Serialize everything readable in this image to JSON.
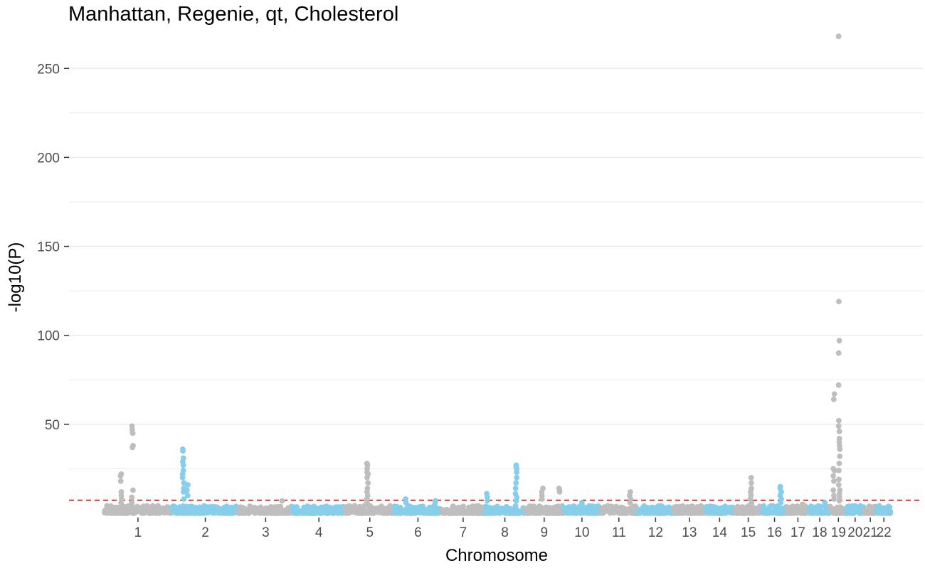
{
  "chart_data": {
    "type": "scatter",
    "title": "Manhattan, Regenie, qt, Cholesterol",
    "xlabel": "Chromosome",
    "ylabel": "-log10(P)",
    "ylim": [
      0,
      270
    ],
    "yticks": [
      50,
      100,
      150,
      200,
      250
    ],
    "grid": true,
    "legend": "none",
    "colors": {
      "odd_chromosome": "#bebebe",
      "even_chromosome": "#87ceeb",
      "threshold_line": "#e41a1c",
      "gridline": "#ebebeb"
    },
    "genome_wide_threshold": 7.3,
    "chromosomes": [
      {
        "label": "1",
        "length": 249,
        "color": "#bebebe",
        "peaks": [
          {
            "pos": 0.25,
            "values": [
              6,
              8,
              10,
              12,
              18,
              21,
              22
            ]
          },
          {
            "pos": 0.42,
            "values": [
              6,
              9,
              13,
              37,
              38,
              45,
              47,
              49
            ]
          }
        ]
      },
      {
        "label": "2",
        "length": 243,
        "color": "#87ceeb",
        "peaks": [
          {
            "pos": 0.17,
            "values": [
              8,
              12,
              14,
              17,
              20,
              22,
              24,
              27,
              29,
              31,
              35,
              36
            ]
          },
          {
            "pos": 0.23,
            "values": [
              10,
              13,
              16
            ]
          }
        ]
      },
      {
        "label": "3",
        "length": 198,
        "color": "#bebebe",
        "peaks": [
          {
            "pos": 0.8,
            "values": [
              7
            ]
          }
        ]
      },
      {
        "label": "4",
        "length": 191,
        "color": "#87ceeb",
        "peaks": []
      },
      {
        "label": "5",
        "length": 181,
        "color": "#bebebe",
        "peaks": [
          {
            "pos": 0.45,
            "values": [
              6,
              8,
              10,
              12,
              14,
              17,
              20,
              22,
              23,
              25,
              27,
              28
            ]
          }
        ]
      },
      {
        "label": "6",
        "length": 171,
        "color": "#87ceeb",
        "peaks": [
          {
            "pos": 0.23,
            "values": [
              6,
              8
            ]
          },
          {
            "pos": 0.88,
            "values": [
              6,
              7
            ]
          }
        ]
      },
      {
        "label": "7",
        "length": 159,
        "color": "#bebebe",
        "peaks": []
      },
      {
        "label": "8",
        "length": 146,
        "color": "#87ceeb",
        "peaks": [
          {
            "pos": 0.05,
            "values": [
              7,
              9,
              11
            ]
          },
          {
            "pos": 0.78,
            "values": [
              7,
              9,
              11,
              14,
              17,
              20,
              23,
              25,
              26,
              27
            ]
          }
        ]
      },
      {
        "label": "9",
        "length": 141,
        "color": "#bebebe",
        "peaks": [
          {
            "pos": 0.45,
            "values": [
              8,
              10,
              12,
              14
            ]
          },
          {
            "pos": 0.9,
            "values": [
              12,
              13,
              14
            ]
          }
        ]
      },
      {
        "label": "10",
        "length": 135,
        "color": "#87ceeb",
        "peaks": [
          {
            "pos": 0.5,
            "values": [
              6
            ]
          }
        ]
      },
      {
        "label": "11",
        "length": 135,
        "color": "#bebebe",
        "peaks": [
          {
            "pos": 0.8,
            "values": [
              6,
              8,
              10,
              12
            ]
          }
        ]
      },
      {
        "label": "12",
        "length": 133,
        "color": "#87ceeb",
        "peaks": []
      },
      {
        "label": "13",
        "length": 114,
        "color": "#bebebe",
        "peaks": []
      },
      {
        "label": "14",
        "length": 107,
        "color": "#87ceeb",
        "peaks": []
      },
      {
        "label": "15",
        "length": 102,
        "color": "#bebebe",
        "peaks": [
          {
            "pos": 0.6,
            "values": [
              6,
              8,
              10,
              12,
              14,
              17,
              20
            ]
          }
        ]
      },
      {
        "label": "16",
        "length": 90,
        "color": "#87ceeb",
        "peaks": [
          {
            "pos": 0.75,
            "values": [
              6,
              8,
              10,
              12,
              14,
              15
            ]
          }
        ]
      },
      {
        "label": "17",
        "length": 81,
        "color": "#bebebe",
        "peaks": [
          {
            "pos": 0.7,
            "values": [
              5
            ]
          }
        ]
      },
      {
        "label": "18",
        "length": 78,
        "color": "#87ceeb",
        "peaks": [
          {
            "pos": 0.75,
            "values": [
              6
            ]
          }
        ]
      },
      {
        "label": "19",
        "length": 59,
        "color": "#bebebe",
        "peaks": [
          {
            "pos": 0.22,
            "values": [
              8,
              10,
              13,
              18,
              21,
              24,
              25,
              64,
              67
            ]
          },
          {
            "pos": 0.55,
            "values": [
              7,
              9,
              11,
              13,
              16,
              19,
              24,
              28,
              32,
              36,
              38,
              40,
              42,
              46,
              49,
              52,
              72,
              90,
              97,
              119,
              268
            ]
          }
        ]
      },
      {
        "label": "20",
        "length": 63,
        "color": "#87ceeb",
        "peaks": []
      },
      {
        "label": "21",
        "length": 48,
        "color": "#bebebe",
        "peaks": []
      },
      {
        "label": "22",
        "length": 51,
        "color": "#87ceeb",
        "peaks": []
      }
    ]
  }
}
